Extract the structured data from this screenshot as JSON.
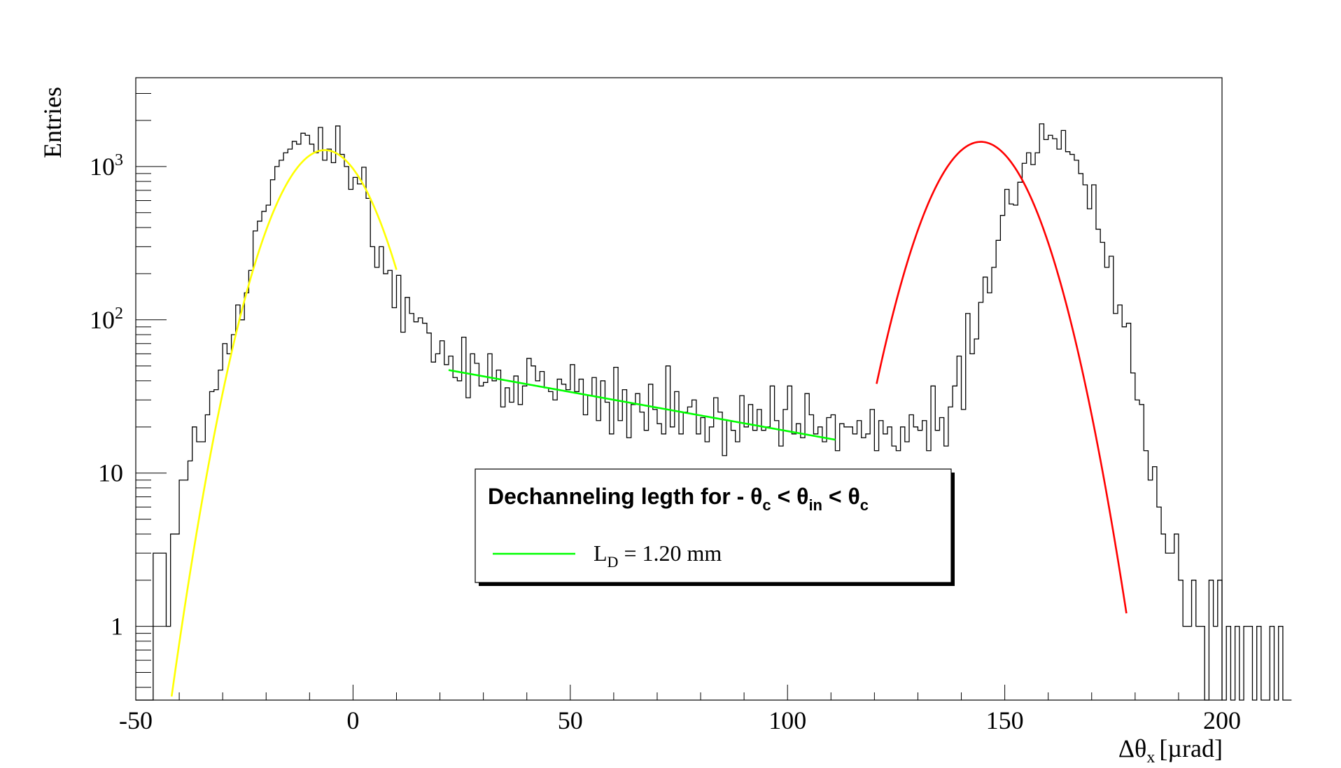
{
  "chart_data": {
    "type": "histogram",
    "x_axis": {
      "label": "Δθ",
      "label_sub": "x",
      "label_unit": "[µrad]",
      "range": [
        -50,
        200
      ],
      "ticks": [
        -50,
        0,
        50,
        100,
        150,
        200
      ],
      "tick_labels": [
        "-50",
        "0",
        "50",
        "100",
        "150",
        "200"
      ]
    },
    "y_axis": {
      "label": "Entries",
      "scale": "log",
      "range": [
        0.33,
        3800
      ],
      "ticks": [
        1,
        10,
        100,
        1000
      ],
      "tick_labels": [
        {
          "base": "1",
          "sup": ""
        },
        {
          "base": "10",
          "sup": ""
        },
        {
          "base": "10",
          "sup": "2"
        },
        {
          "base": "10",
          "sup": "3"
        }
      ]
    },
    "histogram": {
      "color": "#000000",
      "bin_width": 1,
      "x_start": -50,
      "values": [
        0,
        0,
        0,
        0,
        3,
        3,
        3,
        1,
        4,
        4,
        9,
        9,
        12,
        20,
        16,
        16,
        24,
        34,
        35,
        47,
        70,
        60,
        80,
        125,
        100,
        150,
        210,
        380,
        440,
        510,
        560,
        820,
        1000,
        1100,
        1230,
        1300,
        1460,
        1400,
        1650,
        1600,
        1400,
        1230,
        1800,
        1100,
        1300,
        1060,
        1840,
        1200,
        1000,
        710,
        850,
        770,
        990,
        620,
        300,
        220,
        300,
        200,
        210,
        120,
        195,
        83,
        140,
        110,
        97,
        103,
        95,
        82,
        53,
        60,
        73,
        51,
        58,
        42,
        40,
        77,
        31,
        60,
        52,
        37,
        39,
        60,
        40,
        47,
        27,
        36,
        29,
        43,
        28,
        37,
        56,
        50,
        40,
        46,
        36,
        34,
        30,
        41,
        38,
        35,
        51,
        34,
        41,
        24,
        32,
        42,
        22,
        40,
        29,
        18,
        49,
        22,
        35,
        17,
        28,
        33,
        25,
        19,
        38,
        26,
        21,
        18,
        50,
        20,
        34,
        18,
        25,
        27,
        30,
        18,
        23,
        16,
        20,
        31,
        25,
        13,
        22,
        19,
        16,
        32,
        20,
        28,
        19,
        26,
        19,
        20,
        37,
        22,
        15,
        26,
        37,
        18,
        21,
        17,
        33,
        24,
        18,
        20,
        16,
        23,
        24,
        14,
        21,
        20,
        20,
        18,
        22,
        17,
        18,
        26,
        14,
        22,
        18,
        20,
        15,
        14,
        20,
        16,
        24,
        20,
        19,
        22,
        14,
        37,
        19,
        23,
        15,
        27,
        37,
        58,
        26,
        110,
        60,
        75,
        130,
        190,
        150,
        220,
        330,
        480,
        710,
        570,
        560,
        790,
        1050,
        1230,
        1030,
        1230,
        1900,
        1500,
        1600,
        1520,
        1300,
        1720,
        1250,
        1200,
        1100,
        900,
        760,
        530,
        760,
        390,
        320,
        220,
        260,
        110,
        125,
        90,
        95,
        45,
        30,
        28,
        14,
        9,
        11,
        6,
        4,
        3,
        3,
        4,
        2,
        1,
        1,
        2,
        1,
        1,
        0,
        2,
        1,
        2,
        0,
        1,
        0,
        1,
        0,
        1,
        1,
        0,
        1,
        0,
        0,
        1,
        0,
        1,
        0,
        0
      ]
    },
    "fits": [
      {
        "name": "gauss_left",
        "color": "#ffff00",
        "x_range": [
          -50,
          10
        ],
        "amplitude": 1280,
        "mean": -6.5,
        "sigma": 8.7
      },
      {
        "name": "dechanneling",
        "color": "#00ff00",
        "x_range": [
          22,
          111
        ],
        "y_at_start": 47,
        "y_at_end": 16.5
      },
      {
        "name": "gauss_right",
        "color": "#ff0000",
        "x_range": [
          120.5,
          178
        ],
        "amplitude": 1450,
        "mean": 144.5,
        "sigma": 8.9
      }
    ],
    "legend": {
      "title_text": "Dechanneling legth for - θ",
      "title_sub1": "c",
      "title_mid1": " < θ",
      "title_sub2": "in",
      "title_mid2": " < θ",
      "title_sub3": "c",
      "entry_base": "L",
      "entry_sub": "D",
      "entry_value": " = 1.20 mm",
      "entry_color": "#00ff00"
    }
  }
}
